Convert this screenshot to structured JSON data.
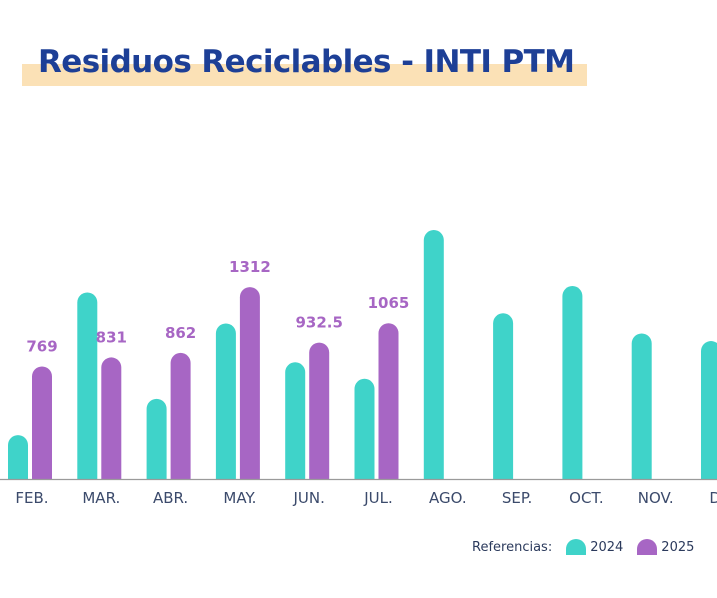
{
  "chart_data": {
    "type": "bar",
    "title": "Residuos Reciclables - INTI PTM",
    "categories": [
      "FEB.",
      "MAR.",
      "ABR.",
      "MAY.",
      "JUN.",
      "JUL.",
      "AGO.",
      "SEP.",
      "OCT.",
      "NOV.",
      "DIC."
    ],
    "series": [
      {
        "name": "2024",
        "color": "#3fd3c9",
        "values": [
          300,
          1275,
          548,
          1063,
          798,
          685,
          1702,
          1133,
          1319,
          995,
          943
        ]
      },
      {
        "name": "2025",
        "color": "#a766c4",
        "values": [
          769,
          831,
          862,
          1312,
          932.5,
          1065,
          null,
          null,
          null,
          null,
          null
        ]
      }
    ],
    "data_labels": [
      "769",
      "831",
      "862",
      "1312",
      "932.5",
      "1065"
    ],
    "ylim": [
      0,
      1750
    ],
    "grid": false,
    "legend": {
      "title": "Referencias:",
      "position": "bottom-right",
      "items": [
        "2024",
        "2025"
      ]
    }
  }
}
